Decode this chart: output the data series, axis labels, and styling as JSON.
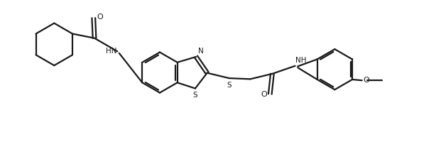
{
  "bg_color": "#ffffff",
  "line_color": "#1a1a1a",
  "line_width": 1.6,
  "figsize": [
    6.21,
    2.14
  ],
  "dpi": 100,
  "xlim": [
    0,
    10
  ],
  "ylim": [
    0,
    3.4
  ]
}
